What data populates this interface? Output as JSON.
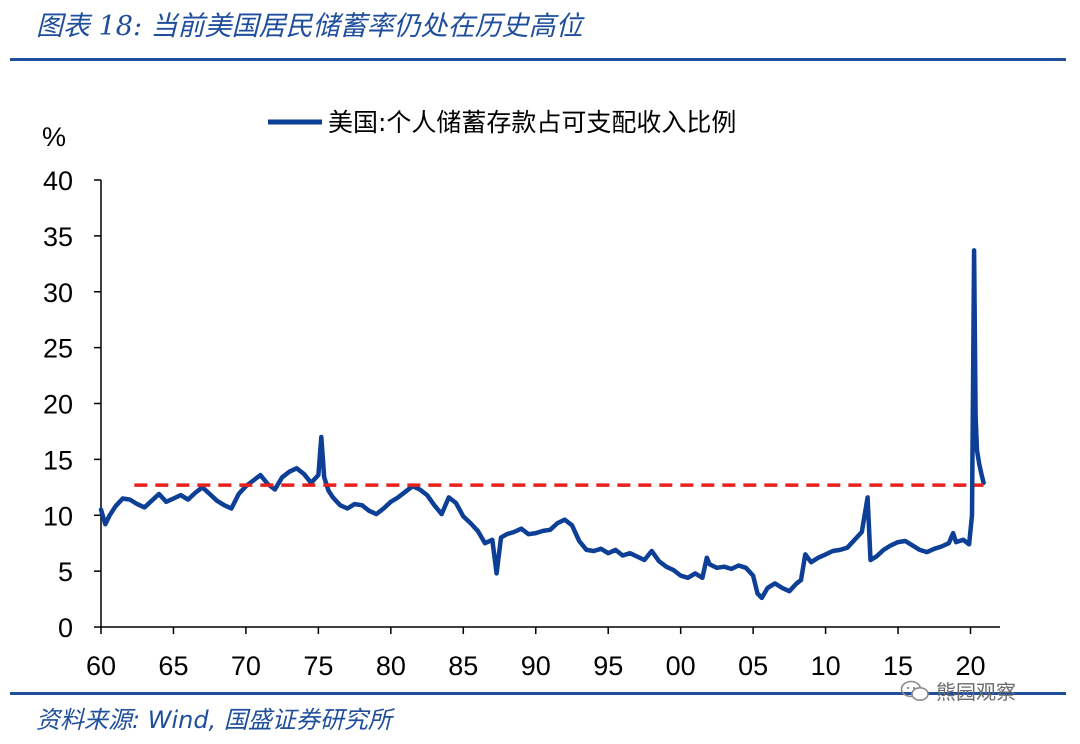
{
  "header": {
    "title": "图表 18: 当前美国居民储蓄率仍处在历史高位"
  },
  "footer": {
    "source": "资料来源: Wind, 国盛证券研究所",
    "watermark": "熊园观察"
  },
  "colors": {
    "series": "#0d3f96",
    "reference": "#e8211c",
    "brand": "#1f4e9c"
  },
  "chart_data": {
    "type": "line",
    "title": "",
    "ylabel": "%",
    "xlabel": "",
    "ylim": [
      0,
      40
    ],
    "xlim": [
      1960,
      2021
    ],
    "yticks": [
      0,
      5,
      10,
      15,
      20,
      25,
      30,
      35,
      40
    ],
    "xticks": [
      {
        "year": 1960,
        "label": "60"
      },
      {
        "year": 1965,
        "label": "65"
      },
      {
        "year": 1970,
        "label": "70"
      },
      {
        "year": 1975,
        "label": "75"
      },
      {
        "year": 1980,
        "label": "80"
      },
      {
        "year": 1985,
        "label": "85"
      },
      {
        "year": 1990,
        "label": "90"
      },
      {
        "year": 1995,
        "label": "95"
      },
      {
        "year": 2000,
        "label": "00"
      },
      {
        "year": 2005,
        "label": "05"
      },
      {
        "year": 2010,
        "label": "10"
      },
      {
        "year": 2015,
        "label": "15"
      },
      {
        "year": 2020,
        "label": "20"
      }
    ],
    "legend": {
      "label": "美国:个人储蓄存款占可支配收入比例",
      "position": "top"
    },
    "reference_line": {
      "value": 12.7,
      "x_start": 1962.3,
      "x_end": 2020.9,
      "style": "dashed"
    },
    "series": [
      {
        "name": "美国:个人储蓄存款占可支配收入比例",
        "x": [
          1960.0,
          1960.3,
          1960.6,
          1961.0,
          1961.5,
          1962.0,
          1962.5,
          1963.0,
          1963.5,
          1964.0,
          1964.5,
          1965.0,
          1965.5,
          1966.0,
          1966.5,
          1967.0,
          1967.5,
          1968.0,
          1968.5,
          1969.0,
          1969.5,
          1970.0,
          1970.5,
          1971.0,
          1971.5,
          1972.0,
          1972.5,
          1973.0,
          1973.5,
          1974.0,
          1974.5,
          1975.0,
          1975.2,
          1975.4,
          1975.7,
          1976.0,
          1976.5,
          1977.0,
          1977.5,
          1978.0,
          1978.5,
          1979.0,
          1979.5,
          1980.0,
          1980.5,
          1981.0,
          1981.5,
          1982.0,
          1982.5,
          1983.0,
          1983.5,
          1984.0,
          1984.5,
          1985.0,
          1985.5,
          1986.0,
          1986.5,
          1987.0,
          1987.3,
          1987.6,
          1988.0,
          1988.5,
          1989.0,
          1989.5,
          1990.0,
          1990.5,
          1991.0,
          1991.5,
          1992.0,
          1992.5,
          1993.0,
          1993.5,
          1994.0,
          1994.5,
          1995.0,
          1995.5,
          1996.0,
          1996.5,
          1997.0,
          1997.5,
          1998.0,
          1998.5,
          1999.0,
          1999.5,
          2000.0,
          2000.5,
          2001.0,
          2001.5,
          2001.8,
          2002.0,
          2002.5,
          2003.0,
          2003.5,
          2004.0,
          2004.5,
          2005.0,
          2005.3,
          2005.6,
          2006.0,
          2006.5,
          2007.0,
          2007.5,
          2008.0,
          2008.3,
          2008.6,
          2009.0,
          2009.5,
          2010.0,
          2010.5,
          2011.0,
          2011.5,
          2012.0,
          2012.5,
          2012.9,
          2013.1,
          2013.5,
          2014.0,
          2014.5,
          2015.0,
          2015.5,
          2016.0,
          2016.5,
          2017.0,
          2017.5,
          2018.0,
          2018.5,
          2018.8,
          2019.0,
          2019.5,
          2019.9,
          2020.1,
          2020.25,
          2020.35,
          2020.45,
          2020.6,
          2020.75,
          2020.9
        ],
        "values": [
          10.5,
          9.2,
          10.0,
          10.8,
          11.5,
          11.4,
          11.0,
          10.7,
          11.3,
          11.9,
          11.2,
          11.5,
          11.8,
          11.4,
          12.0,
          12.5,
          11.9,
          11.3,
          10.9,
          10.6,
          11.9,
          12.6,
          13.1,
          13.6,
          12.8,
          12.3,
          13.4,
          13.9,
          14.2,
          13.7,
          12.9,
          13.6,
          17.0,
          13.4,
          12.2,
          11.6,
          10.9,
          10.6,
          11.0,
          10.9,
          10.4,
          10.1,
          10.6,
          11.2,
          11.6,
          12.1,
          12.6,
          12.3,
          11.8,
          10.9,
          10.1,
          11.6,
          11.1,
          9.9,
          9.3,
          8.6,
          7.5,
          7.8,
          4.8,
          8.0,
          8.3,
          8.5,
          8.8,
          8.3,
          8.4,
          8.6,
          8.7,
          9.3,
          9.6,
          9.1,
          7.7,
          6.9,
          6.8,
          7.0,
          6.6,
          6.9,
          6.4,
          6.6,
          6.3,
          6.0,
          6.8,
          5.9,
          5.4,
          5.1,
          4.6,
          4.4,
          4.8,
          4.4,
          6.2,
          5.6,
          5.3,
          5.4,
          5.2,
          5.5,
          5.3,
          4.6,
          3.0,
          2.6,
          3.5,
          3.9,
          3.5,
          3.2,
          3.9,
          4.2,
          6.5,
          5.8,
          6.2,
          6.5,
          6.8,
          6.9,
          7.1,
          7.8,
          8.5,
          11.6,
          6.0,
          6.3,
          6.9,
          7.3,
          7.6,
          7.7,
          7.3,
          6.9,
          6.7,
          7.0,
          7.2,
          7.5,
          8.4,
          7.6,
          7.8,
          7.4,
          10.0,
          33.7,
          18.9,
          15.8,
          14.6,
          13.7,
          12.9
        ]
      }
    ]
  }
}
